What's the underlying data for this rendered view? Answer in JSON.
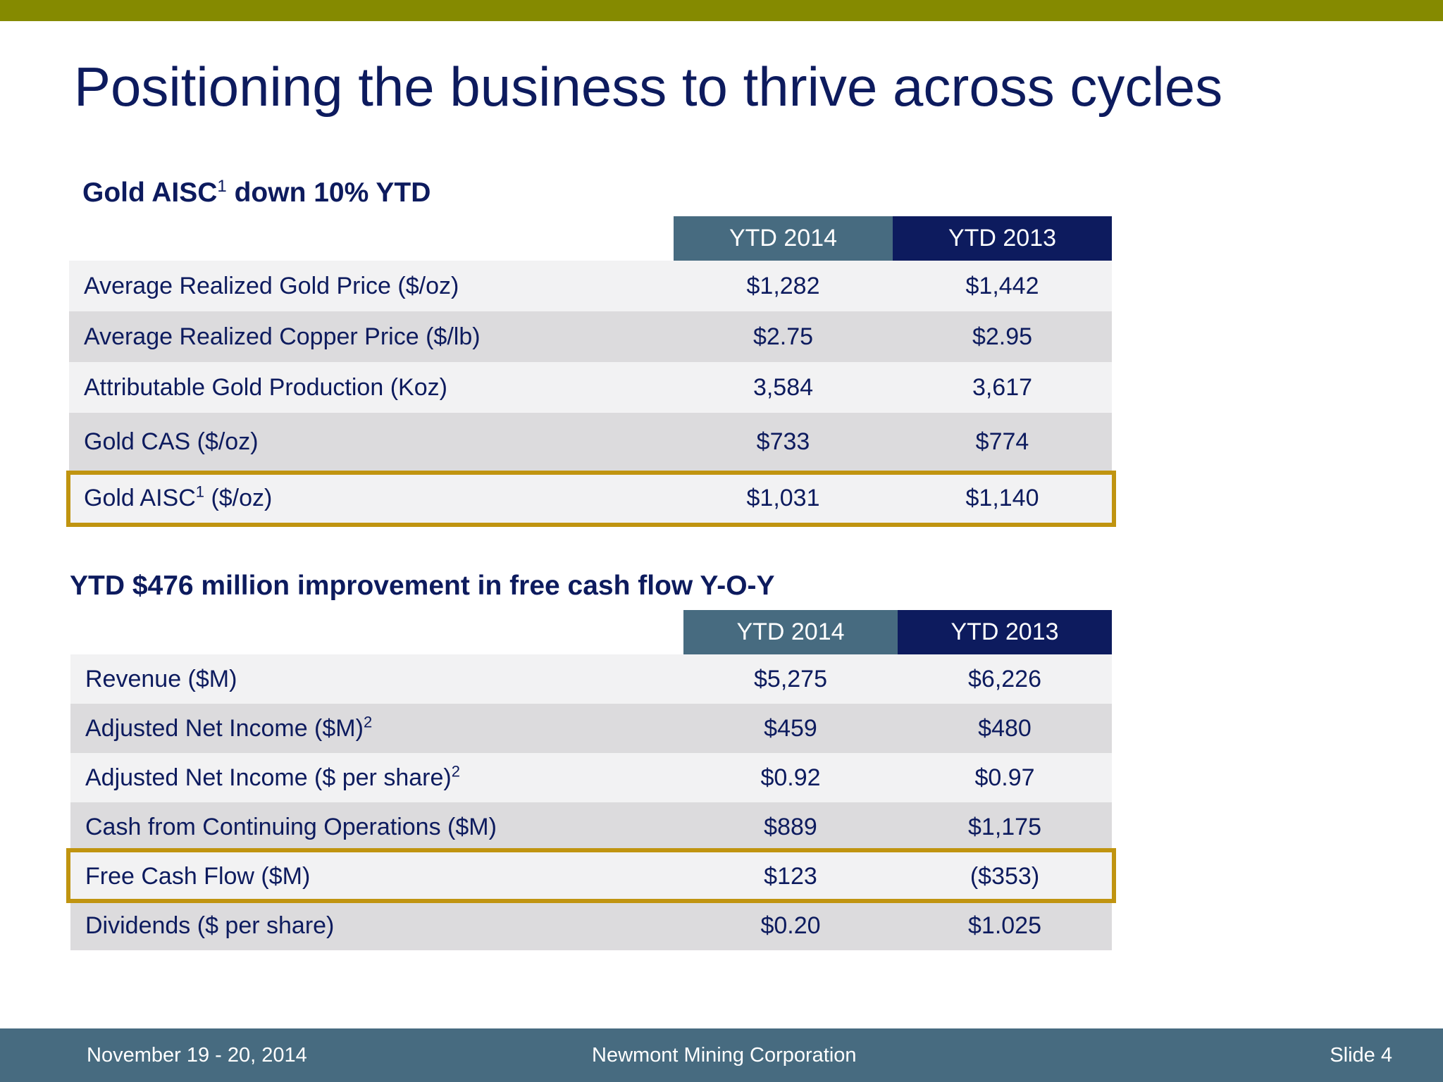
{
  "slide": {
    "title": "Positioning the business to thrive across cycles",
    "colors": {
      "accent_bar": "#858a00",
      "navy": "#0d1b5e",
      "steel": "#476b80",
      "highlight": "#c09410"
    }
  },
  "section1": {
    "heading_pre": "Gold AISC",
    "heading_sup": "1",
    "heading_post": " down 10% YTD",
    "columns": [
      "YTD 2014",
      "YTD 2013"
    ],
    "rows": [
      {
        "label": "Average Realized Gold Price ($/oz)",
        "sup": "",
        "v2014": "$1,282",
        "v2013": "$1,442"
      },
      {
        "label": "Average Realized Copper Price ($/lb)",
        "sup": "",
        "v2014": "$2.75",
        "v2013": "$2.95"
      },
      {
        "label": "Attributable Gold Production (Koz)",
        "sup": "",
        "v2014": "3,584",
        "v2013": "3,617"
      },
      {
        "label": "Gold CAS ($/oz)",
        "sup": "",
        "v2014": "$733",
        "v2013": "$774"
      },
      {
        "label": "Gold AISC",
        "sup": "1",
        "label_post": " ($/oz)",
        "v2014": "$1,031",
        "v2013": "$1,140",
        "highlighted": true
      }
    ]
  },
  "section2": {
    "heading": "YTD $476 million improvement in free cash flow Y-O-Y",
    "columns": [
      "YTD 2014",
      "YTD 2013"
    ],
    "rows": [
      {
        "label": "Revenue ($M)",
        "sup": "",
        "v2014": "$5,275",
        "v2013": "$6,226"
      },
      {
        "label": "Adjusted Net Income ($M)",
        "sup": "2",
        "v2014": "$459",
        "v2013": "$480"
      },
      {
        "label": "Adjusted Net Income ($ per share)",
        "sup": "2",
        "v2014": "$0.92",
        "v2013": "$0.97"
      },
      {
        "label": "Cash from Continuing Operations ($M)",
        "sup": "",
        "v2014": "$889",
        "v2013": "$1,175"
      },
      {
        "label": "Free Cash Flow ($M)",
        "sup": "",
        "v2014": "$123",
        "v2013": "($353)",
        "highlighted": true
      },
      {
        "label": "Dividends ($ per share)",
        "sup": "",
        "v2014": "$0.20",
        "v2013": "$1.025"
      }
    ]
  },
  "footer": {
    "date": "November 19 - 20, 2014",
    "company": "Newmont Mining Corporation",
    "slide_number": "Slide 4"
  }
}
